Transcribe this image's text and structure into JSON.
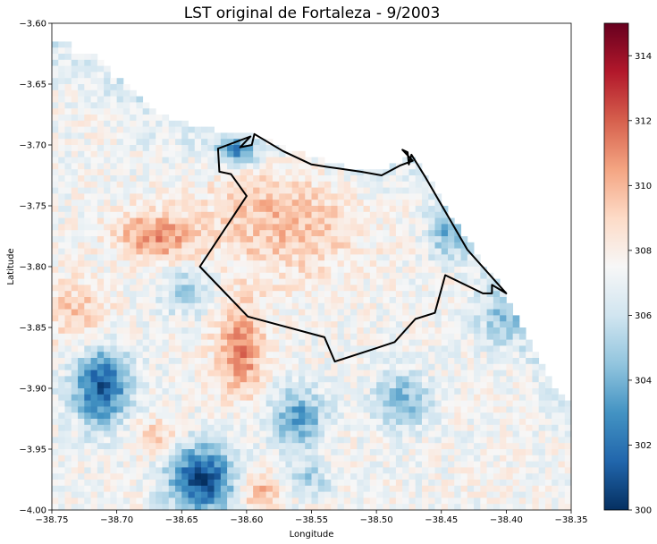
{
  "chart_data": {
    "type": "heatmap",
    "title": "LST original de Fortaleza - 9/2003",
    "xlabel": "Longitude",
    "ylabel": "Latitude",
    "xlim": [
      -38.75,
      -38.35
    ],
    "ylim": [
      -4.0,
      -3.6
    ],
    "xticks": [
      -38.75,
      -38.7,
      -38.65,
      -38.6,
      -38.55,
      -38.5,
      -38.45,
      -38.4,
      -38.35
    ],
    "xtick_labels": [
      "−38.75",
      "−38.70",
      "−38.65",
      "−38.60",
      "−38.55",
      "−38.50",
      "−38.45",
      "−38.40",
      "−38.35"
    ],
    "yticks": [
      -3.6,
      -3.65,
      -3.7,
      -3.75,
      -3.8,
      -3.85,
      -3.9,
      -3.95,
      -4.0
    ],
    "ytick_labels": [
      "−3.60",
      "−3.65",
      "−3.70",
      "−3.75",
      "−3.80",
      "−3.85",
      "−3.90",
      "−3.95",
      "−4.00"
    ],
    "colormap": "RdBu_r",
    "colorbar": {
      "range": [
        300,
        315
      ],
      "ticks": [
        300,
        302,
        304,
        306,
        308,
        310,
        312,
        314
      ],
      "tick_labels": [
        "300",
        "302",
        "304",
        "306",
        "308",
        "310",
        "312",
        "314"
      ]
    },
    "grid": false,
    "coastline_bounds": [
      [
        -38.75,
        -3.615
      ],
      [
        -38.735,
        -3.615
      ],
      [
        -38.735,
        -3.625
      ],
      [
        -38.72,
        -3.625
      ],
      [
        -38.71,
        -3.635
      ],
      [
        -38.7,
        -3.645
      ],
      [
        -38.69,
        -3.655
      ],
      [
        -38.68,
        -3.665
      ],
      [
        -38.67,
        -3.673
      ],
      [
        -38.655,
        -3.68
      ],
      [
        -38.64,
        -3.685
      ],
      [
        -38.625,
        -3.688
      ],
      [
        -38.6,
        -3.69
      ],
      [
        -38.575,
        -3.7
      ],
      [
        -38.55,
        -3.71
      ],
      [
        -38.525,
        -3.718
      ],
      [
        -38.5,
        -3.722
      ],
      [
        -38.48,
        -3.712
      ],
      [
        -38.47,
        -3.71
      ],
      [
        -38.46,
        -3.728
      ],
      [
        -38.45,
        -3.745
      ],
      [
        -38.435,
        -3.77
      ],
      [
        -38.42,
        -3.795
      ],
      [
        -38.405,
        -3.815
      ],
      [
        -38.395,
        -3.835
      ],
      [
        -38.385,
        -3.855
      ],
      [
        -38.375,
        -3.875
      ],
      [
        -38.365,
        -3.895
      ],
      [
        -38.35,
        -3.912
      ]
    ],
    "cold_spots": [
      {
        "lon": -38.712,
        "lat": -3.898,
        "temp": 301.2,
        "rx": 0.022,
        "ry": 0.032
      },
      {
        "lon": -38.635,
        "lat": -3.975,
        "temp": 300.6,
        "rx": 0.025,
        "ry": 0.028
      },
      {
        "lon": -38.56,
        "lat": -3.925,
        "temp": 303.3,
        "rx": 0.02,
        "ry": 0.025
      },
      {
        "lon": -38.48,
        "lat": -3.91,
        "temp": 304.0,
        "rx": 0.02,
        "ry": 0.022
      },
      {
        "lon": -38.607,
        "lat": -3.705,
        "temp": 303.0,
        "rx": 0.015,
        "ry": 0.012
      },
      {
        "lon": -38.445,
        "lat": -3.775,
        "temp": 304.5,
        "rx": 0.015,
        "ry": 0.02
      },
      {
        "lon": -38.405,
        "lat": -3.845,
        "temp": 305.0,
        "rx": 0.018,
        "ry": 0.022
      },
      {
        "lon": -38.645,
        "lat": -3.82,
        "temp": 305.0,
        "rx": 0.02,
        "ry": 0.02
      },
      {
        "lon": -38.55,
        "lat": -3.975,
        "temp": 305.0,
        "rx": 0.015,
        "ry": 0.012
      }
    ],
    "hot_spots": [
      {
        "lon": -38.67,
        "lat": -3.775,
        "temp": 311.0,
        "rx": 0.03,
        "ry": 0.02
      },
      {
        "lon": -38.605,
        "lat": -3.868,
        "temp": 311.5,
        "rx": 0.018,
        "ry": 0.035
      },
      {
        "lon": -38.57,
        "lat": -3.76,
        "temp": 309.8,
        "rx": 0.06,
        "ry": 0.05
      },
      {
        "lon": -38.73,
        "lat": -3.84,
        "temp": 309.5,
        "rx": 0.025,
        "ry": 0.03
      },
      {
        "lon": -38.59,
        "lat": -3.985,
        "temp": 310.0,
        "rx": 0.015,
        "ry": 0.015
      },
      {
        "lon": -38.67,
        "lat": -3.94,
        "temp": 309.3,
        "rx": 0.02,
        "ry": 0.015
      }
    ],
    "base_temp": 307.4,
    "outline": [
      [
        -38.622,
        -3.703
      ],
      [
        -38.621,
        -3.722
      ],
      [
        -38.612,
        -3.724
      ],
      [
        -38.6,
        -3.742
      ],
      [
        -38.636,
        -3.8
      ],
      [
        -38.599,
        -3.841
      ],
      [
        -38.54,
        -3.858
      ],
      [
        -38.532,
        -3.878
      ],
      [
        -38.5,
        -3.867
      ],
      [
        -38.486,
        -3.862
      ],
      [
        -38.47,
        -3.843
      ],
      [
        -38.455,
        -3.838
      ],
      [
        -38.447,
        -3.807
      ],
      [
        -38.418,
        -3.822
      ],
      [
        -38.411,
        -3.822
      ],
      [
        -38.411,
        -3.815
      ],
      [
        -38.4,
        -3.822
      ],
      [
        -38.43,
        -3.786
      ],
      [
        -38.462,
        -3.727
      ],
      [
        -38.473,
        -3.708
      ],
      [
        -38.475,
        -3.716
      ],
      [
        -38.476,
        -3.706
      ],
      [
        -38.48,
        -3.704
      ],
      [
        -38.472,
        -3.713
      ],
      [
        -38.482,
        -3.717
      ],
      [
        -38.496,
        -3.725
      ],
      [
        -38.512,
        -3.722
      ],
      [
        -38.538,
        -3.718
      ],
      [
        -38.55,
        -3.716
      ],
      [
        -38.572,
        -3.705
      ],
      [
        -38.594,
        -3.691
      ],
      [
        -38.596,
        -3.7
      ],
      [
        -38.605,
        -3.702
      ],
      [
        -38.597,
        -3.693
      ],
      [
        -38.622,
        -3.703
      ]
    ]
  }
}
